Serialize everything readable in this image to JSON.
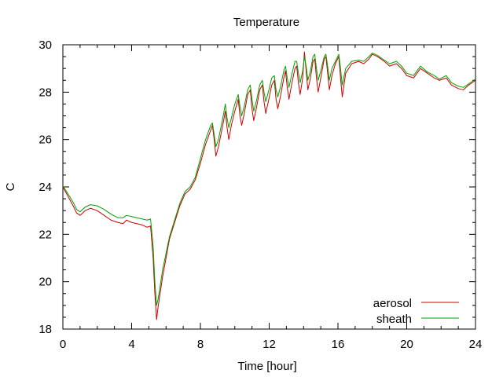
{
  "chart_data": {
    "type": "line",
    "title": "Temperature",
    "xlabel": "Time [hour]",
    "ylabel": "C",
    "xlim": [
      0,
      24
    ],
    "ylim": [
      18,
      30
    ],
    "xticks": [
      0,
      4,
      8,
      12,
      16,
      20,
      24
    ],
    "yticks": [
      18,
      20,
      22,
      24,
      26,
      28,
      30
    ],
    "grid": false,
    "legend_position": "bottom-right",
    "series": [
      {
        "name": "aerosol",
        "color": "#cc0000",
        "points": [
          [
            0.0,
            24.0
          ],
          [
            0.3,
            23.6
          ],
          [
            0.6,
            23.2
          ],
          [
            0.8,
            22.9
          ],
          [
            1.0,
            22.8
          ],
          [
            1.3,
            23.0
          ],
          [
            1.6,
            23.1
          ],
          [
            2.0,
            23.0
          ],
          [
            2.4,
            22.8
          ],
          [
            2.8,
            22.6
          ],
          [
            3.2,
            22.5
          ],
          [
            3.5,
            22.45
          ],
          [
            3.7,
            22.6
          ],
          [
            4.0,
            22.5
          ],
          [
            4.3,
            22.45
          ],
          [
            4.6,
            22.4
          ],
          [
            4.9,
            22.3
          ],
          [
            5.1,
            22.35
          ],
          [
            5.25,
            21.0
          ],
          [
            5.35,
            19.5
          ],
          [
            5.45,
            18.4
          ],
          [
            5.55,
            19.0
          ],
          [
            5.8,
            20.2
          ],
          [
            6.0,
            21.0
          ],
          [
            6.2,
            21.8
          ],
          [
            6.5,
            22.5
          ],
          [
            6.8,
            23.2
          ],
          [
            7.1,
            23.7
          ],
          [
            7.4,
            23.9
          ],
          [
            7.7,
            24.3
          ],
          [
            8.0,
            25.0
          ],
          [
            8.3,
            25.8
          ],
          [
            8.6,
            26.4
          ],
          [
            8.7,
            26.6
          ],
          [
            8.8,
            26.0
          ],
          [
            8.9,
            25.3
          ],
          [
            9.05,
            25.7
          ],
          [
            9.3,
            26.6
          ],
          [
            9.45,
            27.2
          ],
          [
            9.55,
            26.5
          ],
          [
            9.65,
            26.0
          ],
          [
            9.8,
            26.6
          ],
          [
            10.0,
            27.2
          ],
          [
            10.2,
            27.7
          ],
          [
            10.3,
            27.0
          ],
          [
            10.4,
            26.6
          ],
          [
            10.55,
            27.1
          ],
          [
            10.75,
            27.9
          ],
          [
            10.9,
            28.1
          ],
          [
            11.0,
            27.3
          ],
          [
            11.1,
            26.8
          ],
          [
            11.25,
            27.3
          ],
          [
            11.45,
            28.1
          ],
          [
            11.6,
            28.3
          ],
          [
            11.7,
            27.6
          ],
          [
            11.8,
            27.1
          ],
          [
            11.95,
            27.6
          ],
          [
            12.15,
            28.3
          ],
          [
            12.3,
            28.5
          ],
          [
            12.4,
            27.7
          ],
          [
            12.5,
            27.3
          ],
          [
            12.65,
            27.8
          ],
          [
            12.85,
            28.6
          ],
          [
            12.95,
            28.9
          ],
          [
            13.05,
            28.2
          ],
          [
            13.15,
            27.7
          ],
          [
            13.3,
            28.3
          ],
          [
            13.5,
            29.0
          ],
          [
            13.6,
            29.1
          ],
          [
            13.7,
            28.4
          ],
          [
            13.8,
            27.9
          ],
          [
            13.95,
            28.6
          ],
          [
            14.05,
            29.7
          ],
          [
            14.15,
            28.9
          ],
          [
            14.25,
            28.1
          ],
          [
            14.4,
            28.6
          ],
          [
            14.55,
            29.3
          ],
          [
            14.65,
            29.4
          ],
          [
            14.75,
            28.6
          ],
          [
            14.85,
            28.0
          ],
          [
            15.0,
            28.6
          ],
          [
            15.2,
            29.4
          ],
          [
            15.3,
            29.5
          ],
          [
            15.4,
            28.8
          ],
          [
            15.5,
            28.1
          ],
          [
            15.65,
            28.7
          ],
          [
            15.85,
            29.2
          ],
          [
            16.05,
            29.5
          ],
          [
            16.15,
            28.6
          ],
          [
            16.25,
            27.8
          ],
          [
            16.45,
            28.8
          ],
          [
            16.8,
            29.2
          ],
          [
            17.2,
            29.3
          ],
          [
            17.5,
            29.2
          ],
          [
            17.8,
            29.4
          ],
          [
            18.0,
            29.6
          ],
          [
            18.3,
            29.5
          ],
          [
            18.7,
            29.3
          ],
          [
            19.0,
            29.1
          ],
          [
            19.4,
            29.2
          ],
          [
            19.7,
            29.0
          ],
          [
            20.0,
            28.7
          ],
          [
            20.4,
            28.6
          ],
          [
            20.8,
            29.0
          ],
          [
            21.2,
            28.8
          ],
          [
            21.6,
            28.6
          ],
          [
            21.9,
            28.5
          ],
          [
            22.3,
            28.6
          ],
          [
            22.6,
            28.3
          ],
          [
            23.0,
            28.15
          ],
          [
            23.3,
            28.1
          ],
          [
            23.6,
            28.3
          ],
          [
            24.0,
            28.5
          ]
        ]
      },
      {
        "name": "sheath",
        "color": "#00a000",
        "points": [
          [
            0.0,
            24.05
          ],
          [
            0.3,
            23.7
          ],
          [
            0.6,
            23.35
          ],
          [
            0.8,
            23.05
          ],
          [
            1.0,
            22.95
          ],
          [
            1.3,
            23.15
          ],
          [
            1.6,
            23.25
          ],
          [
            2.0,
            23.2
          ],
          [
            2.4,
            23.05
          ],
          [
            2.8,
            22.85
          ],
          [
            3.2,
            22.7
          ],
          [
            3.5,
            22.7
          ],
          [
            3.7,
            22.8
          ],
          [
            4.0,
            22.75
          ],
          [
            4.3,
            22.7
          ],
          [
            4.6,
            22.65
          ],
          [
            4.9,
            22.6
          ],
          [
            5.1,
            22.65
          ],
          [
            5.25,
            21.5
          ],
          [
            5.35,
            20.0
          ],
          [
            5.45,
            19.0
          ],
          [
            5.55,
            19.3
          ],
          [
            5.8,
            20.5
          ],
          [
            6.0,
            21.2
          ],
          [
            6.2,
            21.9
          ],
          [
            6.5,
            22.6
          ],
          [
            6.8,
            23.3
          ],
          [
            7.1,
            23.8
          ],
          [
            7.4,
            24.0
          ],
          [
            7.7,
            24.4
          ],
          [
            8.0,
            25.2
          ],
          [
            8.3,
            26.0
          ],
          [
            8.6,
            26.6
          ],
          [
            8.7,
            26.7
          ],
          [
            8.8,
            26.2
          ],
          [
            8.9,
            25.7
          ],
          [
            9.05,
            26.0
          ],
          [
            9.3,
            26.9
          ],
          [
            9.45,
            27.5
          ],
          [
            9.55,
            26.9
          ],
          [
            9.65,
            26.5
          ],
          [
            9.8,
            26.9
          ],
          [
            10.0,
            27.5
          ],
          [
            10.2,
            27.9
          ],
          [
            10.3,
            27.4
          ],
          [
            10.4,
            27.0
          ],
          [
            10.55,
            27.4
          ],
          [
            10.75,
            28.1
          ],
          [
            10.9,
            28.3
          ],
          [
            11.0,
            27.7
          ],
          [
            11.1,
            27.2
          ],
          [
            11.25,
            27.6
          ],
          [
            11.45,
            28.3
          ],
          [
            11.6,
            28.5
          ],
          [
            11.7,
            28.0
          ],
          [
            11.8,
            27.6
          ],
          [
            11.95,
            28.0
          ],
          [
            12.15,
            28.6
          ],
          [
            12.3,
            28.7
          ],
          [
            12.4,
            28.1
          ],
          [
            12.5,
            27.8
          ],
          [
            12.65,
            28.2
          ],
          [
            12.85,
            28.9
          ],
          [
            12.95,
            29.1
          ],
          [
            13.05,
            28.6
          ],
          [
            13.15,
            28.2
          ],
          [
            13.3,
            28.7
          ],
          [
            13.5,
            29.3
          ],
          [
            13.6,
            29.3
          ],
          [
            13.7,
            28.8
          ],
          [
            13.8,
            28.4
          ],
          [
            13.95,
            28.9
          ],
          [
            14.05,
            29.5
          ],
          [
            14.15,
            29.1
          ],
          [
            14.25,
            28.5
          ],
          [
            14.4,
            28.9
          ],
          [
            14.55,
            29.5
          ],
          [
            14.65,
            29.6
          ],
          [
            14.75,
            29.0
          ],
          [
            14.85,
            28.5
          ],
          [
            15.0,
            28.9
          ],
          [
            15.2,
            29.5
          ],
          [
            15.3,
            29.6
          ],
          [
            15.4,
            29.1
          ],
          [
            15.5,
            28.5
          ],
          [
            15.65,
            29.0
          ],
          [
            15.85,
            29.3
          ],
          [
            16.05,
            29.6
          ],
          [
            16.15,
            29.0
          ],
          [
            16.25,
            28.3
          ],
          [
            16.45,
            29.0
          ],
          [
            16.8,
            29.3
          ],
          [
            17.2,
            29.35
          ],
          [
            17.5,
            29.3
          ],
          [
            17.8,
            29.5
          ],
          [
            18.0,
            29.65
          ],
          [
            18.3,
            29.55
          ],
          [
            18.7,
            29.35
          ],
          [
            19.0,
            29.2
          ],
          [
            19.4,
            29.3
          ],
          [
            19.7,
            29.1
          ],
          [
            20.0,
            28.8
          ],
          [
            20.4,
            28.7
          ],
          [
            20.8,
            29.1
          ],
          [
            21.2,
            28.85
          ],
          [
            21.6,
            28.7
          ],
          [
            21.9,
            28.55
          ],
          [
            22.3,
            28.7
          ],
          [
            22.6,
            28.4
          ],
          [
            23.0,
            28.25
          ],
          [
            23.3,
            28.2
          ],
          [
            23.6,
            28.35
          ],
          [
            24.0,
            28.55
          ]
        ]
      }
    ]
  }
}
